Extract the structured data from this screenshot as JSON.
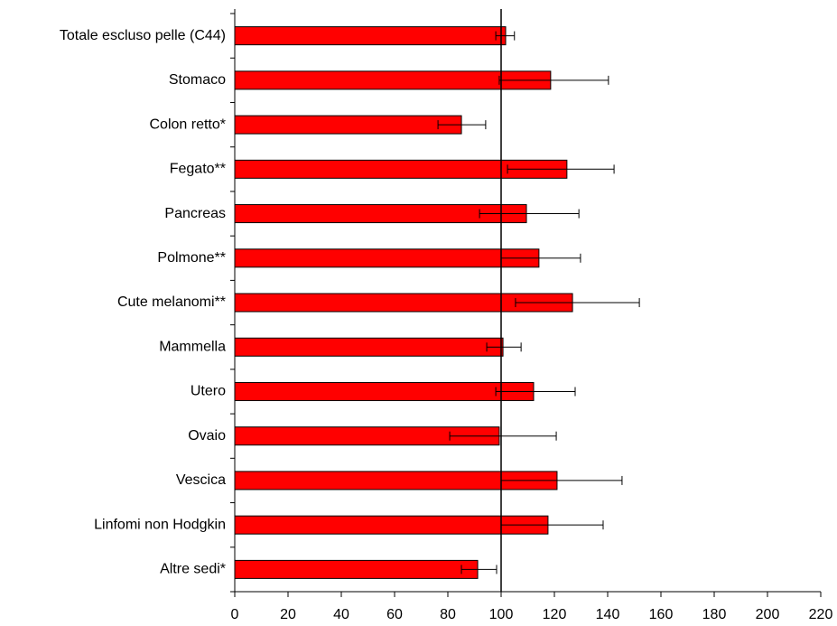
{
  "chart_data": {
    "type": "bar",
    "orientation": "horizontal",
    "categories": [
      "Totale escluso pelle (C44)",
      "Stomaco",
      "Colon retto*",
      "Fegato**",
      "Pancreas",
      "Polmone**",
      "Cute melanomi**",
      "Mammella",
      "Utero",
      "Ovaio",
      "Vescica",
      "Linfomi  non Hodgkin",
      "Altre sedi*"
    ],
    "values": [
      101.7,
      118.6,
      85.1,
      124.7,
      109.5,
      114.2,
      126.8,
      100.7,
      112.2,
      99.3,
      121,
      117.6,
      91.2
    ],
    "ci_low": [
      98,
      99.3,
      76.3,
      102.4,
      91.9,
      100,
      105.4,
      94.6,
      98,
      80.7,
      100,
      100,
      85.1
    ],
    "ci_high": [
      105,
      140.3,
      94.2,
      142.4,
      129.2,
      129.8,
      151.9,
      107.5,
      127.8,
      120.7,
      145.4,
      138.3,
      98.3
    ],
    "color": "#ff0000",
    "reference_line": 100,
    "xlim": [
      0,
      220
    ],
    "xticks": [
      0,
      20,
      40,
      60,
      80,
      100,
      120,
      140,
      160,
      180,
      200,
      220
    ],
    "grid": false
  }
}
